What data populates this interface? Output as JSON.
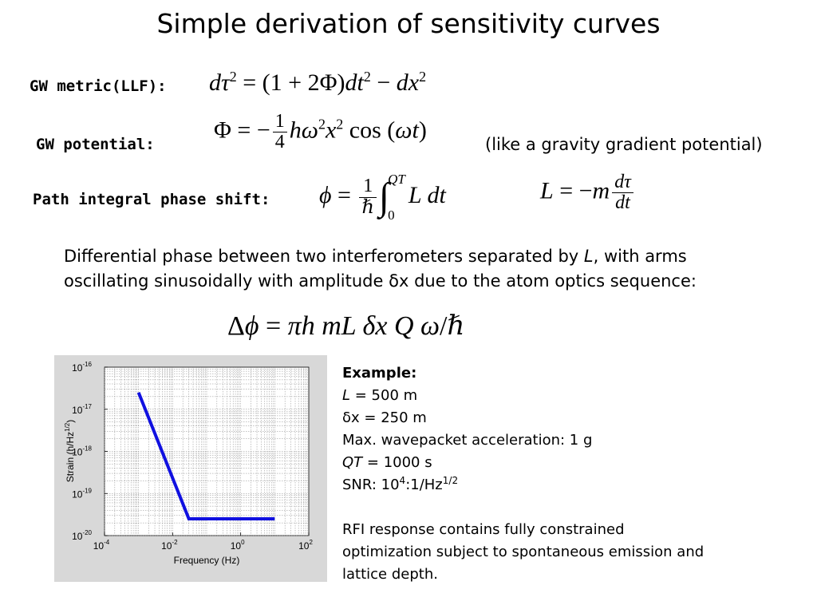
{
  "title": "Simple derivation of sensitivity curves",
  "rows": {
    "metric_label": "GW metric(LLF):",
    "potential_label": "GW potential:",
    "potential_note": "(like a gravity gradient potential)",
    "phase_label": "Path integral phase shift:"
  },
  "paragraph": {
    "part1": "Differential phase between two interferometers separated by ",
    "L": "L",
    "part2": ", with arms oscillating sinusoidally with amplitude ",
    "delta": "δ",
    "part3": "x due to the atom optics sequence:"
  },
  "example": {
    "heading": "Example:",
    "L_var": "L",
    "L_val": " = 500 m",
    "dx_delta": "δ",
    "dx_val": "x = 250 m",
    "accel": "Max. wavepacket acceleration: 1 g",
    "qt_var": "QT",
    "qt_val": " = 1000 s",
    "snr_prefix": "SNR:  10",
    "snr_exp": "4",
    "snr_mid": ":1/Hz",
    "snr_exp2": "1/2",
    "rfi": "RFI response contains fully constrained optimization subject to spontaneous emission and lattice depth."
  },
  "chart_data": {
    "type": "line",
    "xlabel": "Frequency (Hz)",
    "ylabel": "Strain (h/Hz",
    "ylabel_exp": "1/2",
    "ylabel_close": ")",
    "x_scale": "log",
    "y_scale": "log",
    "xlim": [
      0.0001,
      100
    ],
    "ylim": [
      1e-20,
      1e-16
    ],
    "x_ticks": [
      {
        "base": "10",
        "exp": "-4",
        "value": 0.0001
      },
      {
        "base": "10",
        "exp": "-2",
        "value": 0.01
      },
      {
        "base": "10",
        "exp": "0",
        "value": 1
      },
      {
        "base": "10",
        "exp": "2",
        "value": 100
      }
    ],
    "y_ticks": [
      {
        "base": "10",
        "exp": "-20",
        "value": 1e-20
      },
      {
        "base": "10",
        "exp": "-19",
        "value": 1e-19
      },
      {
        "base": "10",
        "exp": "-18",
        "value": 1e-18
      },
      {
        "base": "10",
        "exp": "-17",
        "value": 1e-17
      },
      {
        "base": "10",
        "exp": "-16",
        "value": 1e-16
      }
    ],
    "grid": true,
    "line_color": "#1010e0",
    "series": [
      {
        "x": [
          0.001,
          0.03,
          10
        ],
        "y": [
          2.5e-17,
          2.5e-20,
          2.5e-20
        ]
      }
    ]
  }
}
